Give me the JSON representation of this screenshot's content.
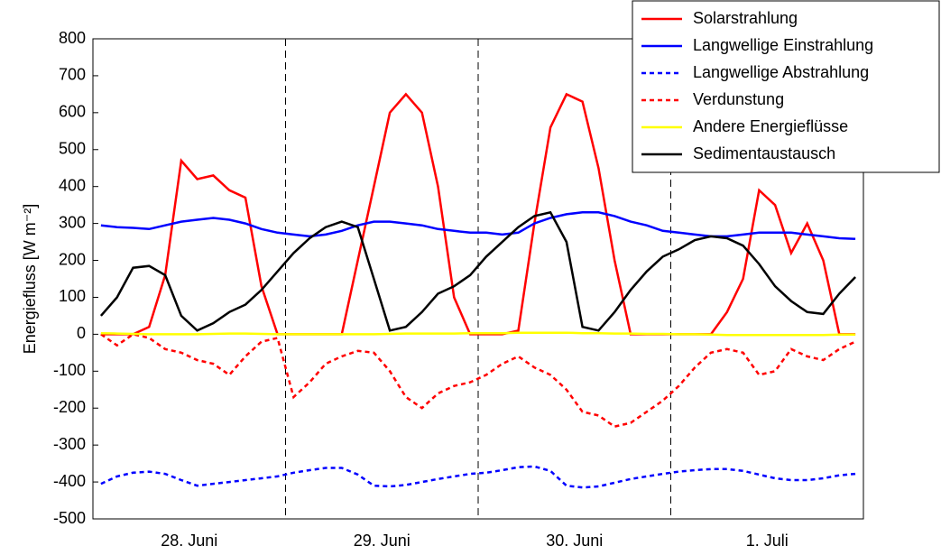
{
  "chart_data": {
    "type": "line",
    "y_label": "Energiefluss [W m⁻²]",
    "categories": [
      null,
      null,
      null,
      null,
      null,
      null,
      "28. Juni",
      null,
      null,
      null,
      null,
      null,
      null,
      null,
      null,
      null,
      null,
      null,
      "29. Juni",
      null,
      null,
      null,
      null,
      null,
      null,
      null,
      null,
      null,
      null,
      null,
      "30. Juni",
      null,
      null,
      null,
      null,
      null,
      null,
      null,
      null,
      null,
      null,
      null,
      "1. Juli",
      null,
      null,
      null,
      null,
      null
    ],
    "ylim": [
      -500,
      800
    ],
    "yticks": [
      -500,
      -400,
      -300,
      -200,
      -100,
      0,
      100,
      200,
      300,
      400,
      500,
      600,
      700,
      800
    ],
    "legend": "top-right",
    "series": [
      {
        "name": "Solarstrahlung",
        "color": "#ff0000",
        "style": "solid",
        "values": [
          0,
          0,
          0,
          20,
          160,
          470,
          420,
          430,
          390,
          370,
          130,
          0,
          0,
          0,
          0,
          0,
          200,
          400,
          600,
          650,
          600,
          400,
          100,
          0,
          0,
          0,
          10,
          300,
          560,
          650,
          630,
          450,
          200,
          0,
          0,
          0,
          0,
          0,
          0,
          60,
          150,
          390,
          350,
          220,
          300,
          200,
          0,
          0
        ]
      },
      {
        "name": "Langwellige Einstrahlung",
        "color": "#0000ff",
        "style": "solid",
        "values": [
          295,
          290,
          288,
          285,
          295,
          305,
          310,
          315,
          310,
          300,
          285,
          275,
          270,
          265,
          270,
          280,
          295,
          305,
          305,
          300,
          295,
          285,
          280,
          275,
          275,
          270,
          275,
          300,
          315,
          325,
          330,
          330,
          320,
          305,
          295,
          280,
          275,
          270,
          265,
          265,
          270,
          275,
          275,
          275,
          270,
          265,
          260,
          258
        ]
      },
      {
        "name": "Langwellige Abstrahlung",
        "color": "#0000ff",
        "style": "dashed",
        "values": [
          -405,
          -385,
          -375,
          -372,
          -378,
          -395,
          -410,
          -405,
          -400,
          -395,
          -390,
          -385,
          -375,
          -368,
          -362,
          -362,
          -380,
          -410,
          -412,
          -408,
          -400,
          -392,
          -385,
          -378,
          -375,
          -368,
          -360,
          -358,
          -370,
          -410,
          -415,
          -412,
          -402,
          -392,
          -385,
          -378,
          -372,
          -368,
          -365,
          -365,
          -370,
          -380,
          -390,
          -395,
          -395,
          -390,
          -382,
          -378
        ]
      },
      {
        "name": "Verdunstung",
        "color": "#ff0000",
        "style": "dashed",
        "values": [
          0,
          -30,
          0,
          -10,
          -40,
          -50,
          -70,
          -80,
          -110,
          -60,
          -20,
          -10,
          -170,
          -130,
          -80,
          -60,
          -45,
          -50,
          -100,
          -170,
          -200,
          -160,
          -140,
          -130,
          -110,
          -80,
          -60,
          -90,
          -110,
          -150,
          -210,
          -220,
          -250,
          -240,
          -210,
          -180,
          -140,
          -90,
          -50,
          -40,
          -50,
          -110,
          -100,
          -40,
          -60,
          -70,
          -40,
          -20
        ]
      },
      {
        "name": "Andere Energieflüsse",
        "color": "#ffff00",
        "style": "solid",
        "values": [
          3,
          2,
          1,
          0,
          0,
          0,
          0,
          1,
          2,
          2,
          1,
          0,
          0,
          0,
          0,
          0,
          0,
          0,
          1,
          2,
          2,
          2,
          2,
          3,
          3,
          3,
          4,
          4,
          4,
          4,
          3,
          3,
          2,
          2,
          1,
          1,
          0,
          0,
          -1,
          -2,
          -2,
          -2,
          -2,
          -2,
          -2,
          -2,
          -1,
          -1
        ]
      },
      {
        "name": "Sedimentaustausch",
        "color": "#000000",
        "style": "solid",
        "values": [
          50,
          100,
          180,
          185,
          160,
          50,
          10,
          30,
          60,
          80,
          120,
          170,
          220,
          260,
          290,
          305,
          290,
          150,
          10,
          20,
          60,
          110,
          130,
          160,
          210,
          250,
          290,
          320,
          330,
          250,
          20,
          10,
          60,
          120,
          170,
          210,
          230,
          255,
          265,
          260,
          240,
          190,
          130,
          90,
          60,
          55,
          110,
          155
        ]
      }
    ]
  }
}
